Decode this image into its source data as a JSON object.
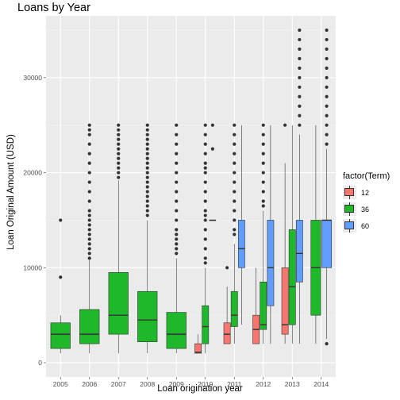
{
  "chart_data": {
    "type": "boxplot",
    "title": "Loans by Year",
    "xlabel": "Loan origination year",
    "ylabel": "Loan Original Amount (USD)",
    "ylim": [
      -1500,
      36500
    ],
    "yticks": [
      0,
      10000,
      20000,
      30000
    ],
    "ytick_labels": [
      "0",
      "10000",
      "20000",
      "30000"
    ],
    "categories": [
      "2005",
      "2006",
      "2007",
      "2008",
      "2009",
      "2010",
      "2011",
      "2012",
      "2013",
      "2014"
    ],
    "legend_title": "factor(Term)",
    "legend_position": "right",
    "grid": true,
    "series": [
      {
        "name": "12",
        "color": "#f8766d",
        "boxes": [
          {
            "category": "2010",
            "min": 1000,
            "q1": 1000,
            "median": 1100,
            "q3": 2000,
            "max": 3000,
            "outliers": []
          },
          {
            "category": "2011",
            "min": 2000,
            "q1": 2000,
            "median": 3000,
            "q3": 4200,
            "max": 8000,
            "outliers": [
              10000
            ]
          },
          {
            "category": "2012",
            "min": 2000,
            "q1": 2000,
            "median": 3500,
            "q3": 5000,
            "max": 10000,
            "outliers": []
          },
          {
            "category": "2013",
            "min": 2000,
            "q1": 3000,
            "median": 4000,
            "q3": 10000,
            "max": 21000,
            "outliers": [
              25000
            ]
          }
        ]
      },
      {
        "name": "36",
        "color": "#1fb82b",
        "boxes": [
          {
            "category": "2005",
            "min": 1000,
            "q1": 1500,
            "median": 3000,
            "q3": 4200,
            "max": 5000,
            "outliers": [
              9000,
              15000
            ]
          },
          {
            "category": "2006",
            "min": 1000,
            "q1": 2000,
            "median": 3000,
            "q3": 5600,
            "max": 10800,
            "outliers": [
              11000,
              11500,
              12000,
              12500,
              13000,
              13500,
              14000,
              14500,
              15000,
              15500,
              16000,
              17000,
              18000,
              19000,
              20000,
              21000,
              22000,
              23000,
              24000,
              24500,
              25000
            ]
          },
          {
            "category": "2007",
            "min": 1000,
            "q1": 3000,
            "median": 5000,
            "q3": 9500,
            "max": 19200,
            "outliers": [
              19500,
              20000,
              20500,
              21000,
              21500,
              22000,
              22500,
              23000,
              23500,
              24000,
              24500,
              25000
            ]
          },
          {
            "category": "2008",
            "min": 1000,
            "q1": 2200,
            "median": 4500,
            "q3": 7500,
            "max": 15000,
            "outliers": [
              15500,
              16000,
              16500,
              17000,
              17500,
              18000,
              18500,
              19000,
              19500,
              20000,
              20500,
              21000,
              21500,
              22000,
              22500,
              23000,
              23500,
              24000,
              24500,
              25000
            ]
          },
          {
            "category": "2009",
            "min": 1000,
            "q1": 1500,
            "median": 3000,
            "q3": 5300,
            "max": 11000,
            "outliers": [
              11500,
              12000,
              12500,
              13000,
              13500,
              14000,
              15000,
              16000,
              17000,
              18000,
              19000,
              20000,
              21000,
              22000,
              23000,
              24000,
              25000
            ]
          },
          {
            "category": "2010",
            "min": 1000,
            "q1": 2000,
            "median": 3800,
            "q3": 6000,
            "max": 10000,
            "outliers": [
              10500,
              11000,
              12000,
              13000,
              14000,
              15000,
              15500,
              16000,
              17000,
              18000,
              19000,
              20000,
              20500,
              21000,
              22000,
              23000,
              24000,
              25000
            ]
          },
          {
            "category": "2011",
            "min": 2000,
            "q1": 3800,
            "median": 5000,
            "q3": 7500,
            "max": 12500,
            "outliers": [
              13500,
              14000,
              15000,
              16000,
              17000,
              18000,
              19000,
              20000,
              21000,
              22000,
              23000,
              24000,
              25000
            ]
          },
          {
            "category": "2012",
            "min": 2000,
            "q1": 3500,
            "median": 4000,
            "q3": 8500,
            "max": 16000,
            "outliers": [
              16500,
              17000,
              18000,
              19000,
              20000,
              21000,
              22000,
              23000,
              24000,
              25000
            ]
          },
          {
            "category": "2013",
            "min": 2000,
            "q1": 4000,
            "median": 8000,
            "q3": 14000,
            "max": 25000,
            "outliers": []
          },
          {
            "category": "2014",
            "min": 2000,
            "q1": 5000,
            "median": 10000,
            "q3": 15000,
            "max": 25000,
            "outliers": []
          }
        ]
      },
      {
        "name": "60",
        "color": "#619cff",
        "boxes": [
          {
            "category": "2010",
            "min": 15000,
            "q1": 15000,
            "median": 15000,
            "q3": 15000,
            "max": 15000,
            "outliers": [
              22500,
              25000
            ]
          },
          {
            "category": "2011",
            "min": 4000,
            "q1": 10000,
            "median": 12000,
            "q3": 15000,
            "max": 25000,
            "outliers": []
          },
          {
            "category": "2012",
            "min": 2000,
            "q1": 6000,
            "median": 10000,
            "q3": 15000,
            "max": 25000,
            "outliers": []
          },
          {
            "category": "2013",
            "min": 2000,
            "q1": 8500,
            "median": 11500,
            "q3": 15000,
            "max": 24000,
            "outliers": [
              25000,
              26000,
              27000,
              28000,
              29000,
              30000,
              31000,
              32000,
              33000,
              34000,
              35000
            ]
          },
          {
            "category": "2014",
            "min": 2500,
            "q1": 10000,
            "median": 15000,
            "q3": 15000,
            "max": 22500,
            "outliers": [
              2000,
              23000,
              24000,
              25000,
              26000,
              27000,
              28000,
              29000,
              30000,
              31000,
              32000,
              33000,
              34000,
              35000
            ]
          }
        ]
      }
    ]
  }
}
